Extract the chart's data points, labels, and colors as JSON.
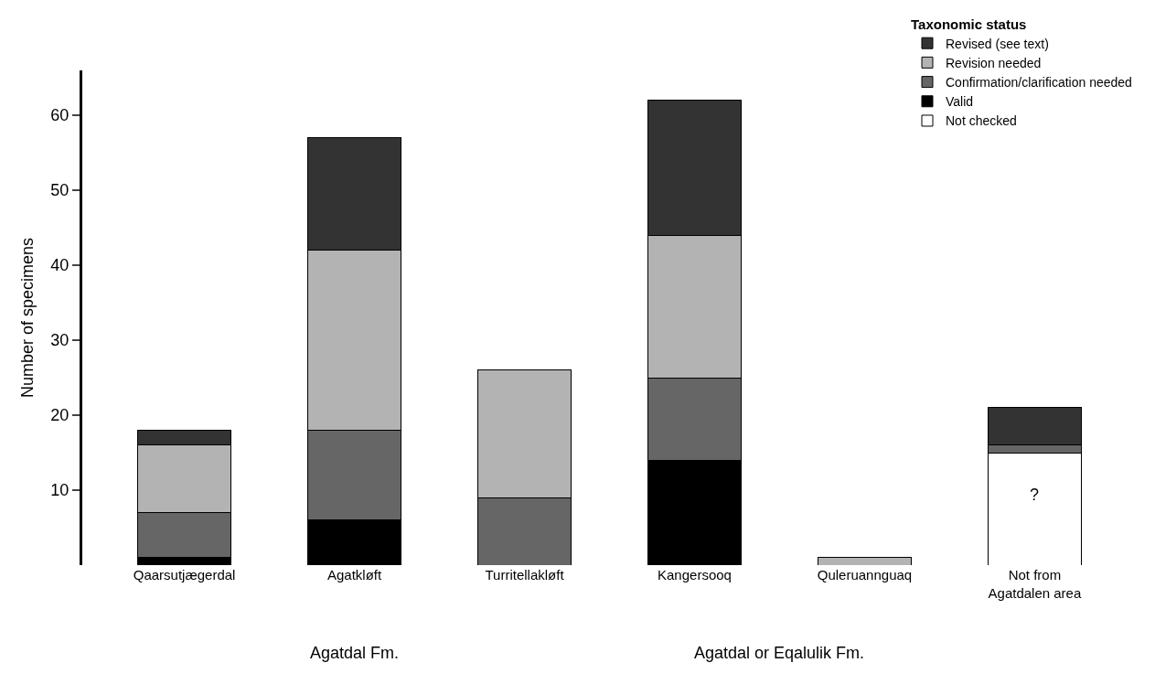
{
  "chart_data": {
    "type": "bar",
    "stacked": true,
    "ylabel": "Number of specimens",
    "legend_title": "Taxonomic status",
    "legend": "top right",
    "categories": [
      "Qaarsutjægerdal",
      "Agatkløft",
      "Turritellakløft",
      "Kangersooq",
      "Quleruannguaq",
      "Not from\nAgatdalen area"
    ],
    "series": [
      {
        "name": "Not checked",
        "color": "#ffffff",
        "values": [
          null,
          null,
          null,
          null,
          null,
          15
        ]
      },
      {
        "name": "Valid",
        "color": "#000000",
        "values": [
          1,
          6,
          null,
          14,
          null,
          null
        ]
      },
      {
        "name": "Confirmation/clarification needed",
        "color": "#666666",
        "values": [
          6,
          12,
          9,
          11,
          null,
          1
        ]
      },
      {
        "name": "Revision needed",
        "color": "#b3b3b3",
        "values": [
          9,
          24,
          17,
          19,
          1,
          null
        ]
      },
      {
        "name": "Revised (see text)",
        "color": "#333333",
        "values": [
          2,
          15,
          null,
          18,
          null,
          5
        ]
      }
    ],
    "ylim": [
      0,
      66
    ],
    "yticks": [
      10,
      20,
      30,
      40,
      50,
      60
    ],
    "annotations": [
      "Agatdal Fm.",
      "Agatdal or Eqalulik Fm.",
      "?"
    ]
  }
}
